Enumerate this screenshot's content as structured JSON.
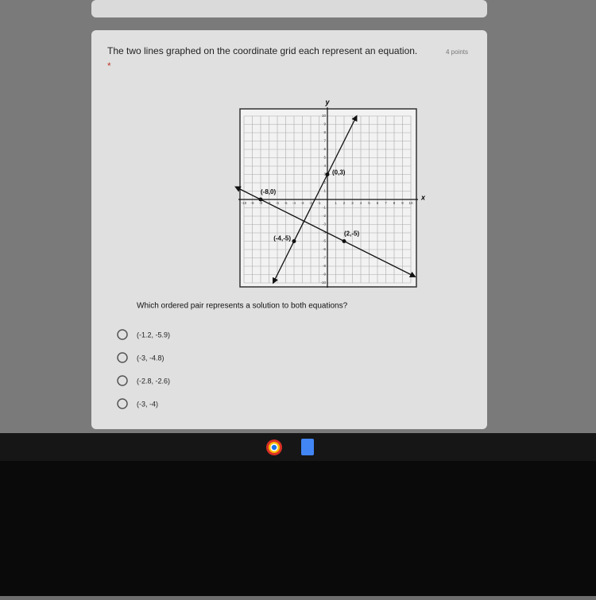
{
  "question": {
    "title": "The two lines graphed on the coordinate grid each represent an equation.",
    "points": "4 points",
    "required": "*"
  },
  "graph": {
    "x_label": "x",
    "y_label": "y",
    "ticks": [
      -10,
      -9,
      -8,
      -7,
      -6,
      -5,
      -4,
      -3,
      -2,
      -1,
      1,
      2,
      3,
      4,
      5,
      6,
      7,
      8,
      9,
      10
    ],
    "point_labels": [
      "(0,3)",
      "(-8,0)",
      "(-4,-5)",
      "(2,-5)"
    ]
  },
  "prompt": "Which ordered pair represents a solution to both equations?",
  "options": [
    "(-1.2, -5.9)",
    "(-3, -4.8)",
    "(-2.8, -2.6)",
    "(-3, -4)"
  ]
}
